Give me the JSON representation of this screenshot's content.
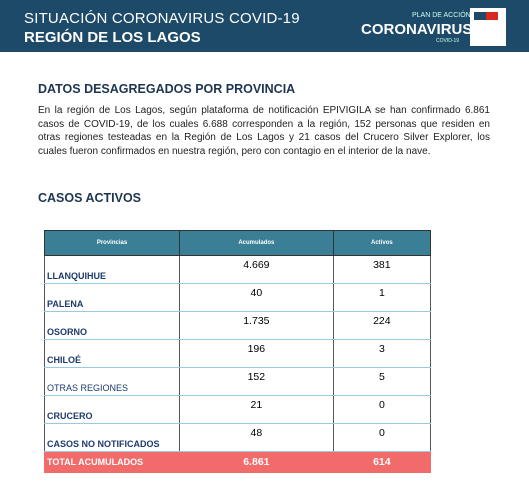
{
  "header": {
    "title": "SITUACIÓN CORONAVIRUS COVID-19",
    "subtitle": "REGIÓN DE LOS LAGOS",
    "brand": {
      "plan": "PLAN DE ACCIÓN",
      "name": "CORONAVIRUS",
      "tag": "COVID-19"
    }
  },
  "section": {
    "heading": "DATOS DESAGREGADOS POR PROVINCIA",
    "body": "En la región de Los Lagos, según plataforma de notificación EPIVIGILA se han confirmado 6.861 casos de COVID-19, de los cuales 6.688 corresponden a la región, 152 personas que residen en otras regiones testeadas en la Región de Los Lagos y 21 casos del Crucero Silver Explorer, los cuales fueron confirmados en nuestra región, pero con contagio en el interior de la nave."
  },
  "table": {
    "heading": "CASOS ACTIVOS",
    "columns": [
      "Provincias",
      "Acumulados",
      "Activos"
    ],
    "rows": [
      [
        "LLANQUIHUE",
        "4.669",
        "381"
      ],
      [
        "PALENA",
        "40",
        "1"
      ],
      [
        "OSORNO",
        "1.735",
        "224"
      ],
      [
        "CHILOÉ",
        "196",
        "3"
      ],
      [
        "OTRAS REGIONES",
        "152",
        "5"
      ],
      [
        "CRUCERO",
        "21",
        "0"
      ],
      [
        "CASOS NO NOTIFICADOS",
        "48",
        "0"
      ]
    ],
    "total": [
      "TOTAL ACUMULADOS",
      "6.861",
      "614"
    ]
  }
}
